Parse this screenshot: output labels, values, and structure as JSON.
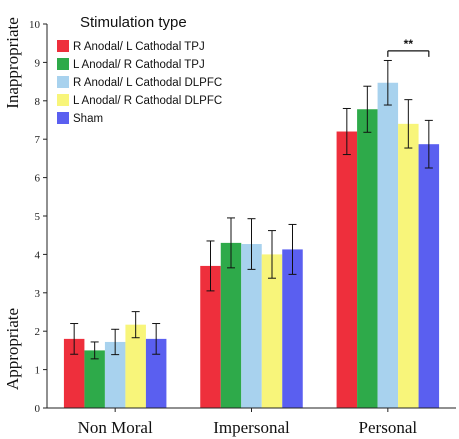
{
  "chart_data": {
    "type": "bar",
    "categories": [
      "Non Moral",
      "Impersonal",
      "Personal"
    ],
    "ylim": [
      0,
      10
    ],
    "yticks": [
      0,
      1,
      2,
      3,
      4,
      5,
      6,
      7,
      8,
      9,
      10
    ],
    "ylabel_top": "Inappropriate",
    "ylabel_bottom": "Appropriate",
    "legend_title": "Stimulation type",
    "legend_position": "top-left",
    "grid": false,
    "series": [
      {
        "name": "R Anodal/ L Cathodal TPJ",
        "color": "#ee2f3c",
        "values": [
          1.8,
          3.7,
          7.2
        ],
        "errors": [
          0.4,
          0.65,
          0.6
        ]
      },
      {
        "name": "L Anodal/ R Cathodal TPJ",
        "color": "#2eaa4a",
        "values": [
          1.5,
          4.3,
          7.78
        ],
        "errors": [
          0.22,
          0.65,
          0.6
        ]
      },
      {
        "name": "R Anodal/ L Cathodal DLPFC",
        "color": "#a8d2ee",
        "values": [
          1.72,
          4.27,
          8.47
        ],
        "errors": [
          0.33,
          0.66,
          0.58
        ]
      },
      {
        "name": "L Anodal/ R Cathodal DLPFC",
        "color": "#f8f57a",
        "values": [
          2.17,
          4.0,
          7.4
        ],
        "errors": [
          0.34,
          0.62,
          0.63
        ]
      },
      {
        "name": "Sham",
        "color": "#5a5ff0",
        "values": [
          1.8,
          4.13,
          6.87
        ],
        "errors": [
          0.4,
          0.65,
          0.62
        ]
      }
    ],
    "annotations": [
      {
        "text": "**",
        "category": "Personal",
        "from_series": 2,
        "to_series": 4,
        "y": 9.3
      }
    ]
  }
}
